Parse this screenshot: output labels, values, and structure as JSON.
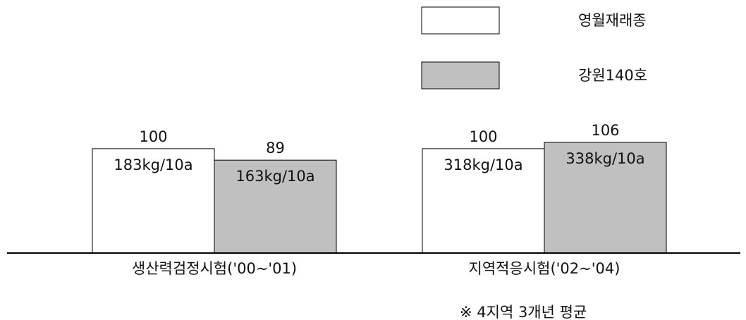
{
  "chart_data": {
    "type": "bar",
    "categories": [
      "생산력검정시험('00~'01)",
      "지역적응시험('02~'04)"
    ],
    "series": [
      {
        "name": "영월재래종",
        "color": "#ffffff",
        "values": [
          100,
          100
        ],
        "labels": [
          "183kg/10a",
          "318kg/10a"
        ]
      },
      {
        "name": "강원140호",
        "color": "#c0c0c0",
        "values": [
          89,
          106
        ],
        "labels": [
          "163kg/10a",
          "338kg/10a"
        ]
      }
    ],
    "ylim": [
      0,
      106
    ],
    "grid": false,
    "legend_position": "top-right"
  },
  "note": "※ 4지역 3개년 평균"
}
